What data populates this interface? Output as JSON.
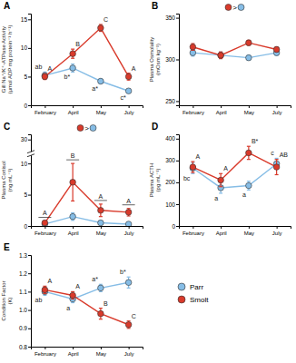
{
  "chart_data": [
    {
      "type": "line",
      "title": "A",
      "y_label": [
        "Gill Na⁺/K⁺-ATPase Activity",
        "(µmol ADP mg protein⁻¹ h⁻¹)"
      ],
      "categories": [
        "February",
        "April",
        "May",
        "July"
      ],
      "ylim": [
        0,
        16
      ],
      "yticks": [
        0,
        5,
        10,
        15
      ],
      "series": [
        {
          "name": "Parr",
          "color": "#86bde6",
          "values": [
            5.2,
            6.5,
            4.2,
            2.5
          ],
          "errors": [
            0.6,
            0.7,
            0.4,
            0.3
          ],
          "letters": [
            "ab",
            "b*",
            "a*",
            "c*"
          ]
        },
        {
          "name": "Smolt",
          "color": "#d93a2b",
          "values": [
            5.0,
            9.0,
            13.5,
            5.0
          ],
          "errors": [
            0.5,
            0.8,
            0.6,
            0.6
          ],
          "letters": [
            "A",
            "B",
            "C",
            "A"
          ]
        }
      ]
    },
    {
      "type": "line",
      "title": "B",
      "y_label": [
        "Plasma Osmolality",
        "(mOsm kg⁻¹)"
      ],
      "categories": [
        "February",
        "April",
        "May",
        "July"
      ],
      "ylim": [
        245,
        355
      ],
      "yticks": [
        250,
        300,
        350
      ],
      "comparison": {
        "text": ">",
        "colors": [
          "#d93a2b",
          "#86bde6"
        ]
      },
      "series": [
        {
          "name": "Parr",
          "color": "#86bde6",
          "values": [
            308,
            305,
            302,
            308
          ],
          "errors": [
            4,
            4,
            3,
            3
          ]
        },
        {
          "name": "Smolt",
          "color": "#d93a2b",
          "values": [
            315,
            305,
            320,
            312
          ],
          "errors": [
            4,
            4,
            3,
            3
          ]
        }
      ]
    },
    {
      "type": "line",
      "title": "C",
      "y_label": [
        "Plasma Cortisol",
        "(ng mL⁻¹)"
      ],
      "categories": [
        "February",
        "April",
        "May",
        "July"
      ],
      "ylim": [
        0,
        31
      ],
      "yticks": [
        0,
        5,
        10,
        30
      ],
      "y_break": [
        11,
        28
      ],
      "comparison": {
        "text": ">",
        "colors": [
          "#d93a2b",
          "#86bde6"
        ]
      },
      "pooled_letters": [
        "A",
        "B",
        "A",
        "A"
      ],
      "series": [
        {
          "name": "Parr",
          "color": "#86bde6",
          "values": [
            0.3,
            1.5,
            0.5,
            0.3
          ],
          "errors": [
            0.2,
            0.6,
            0.3,
            0.1
          ]
        },
        {
          "name": "Smolt",
          "color": "#d93a2b",
          "values": [
            0.5,
            7.0,
            2.5,
            2.2
          ],
          "errors": [
            0.3,
            3.0,
            1.0,
            0.6
          ]
        }
      ]
    },
    {
      "type": "line",
      "title": "D",
      "y_label": [
        "Plasma ACTH",
        "(pg mL⁻¹)"
      ],
      "categories": [
        "February",
        "April",
        "May",
        "July"
      ],
      "ylim": [
        0,
        420
      ],
      "yticks": [
        0,
        100,
        200,
        300,
        400
      ],
      "series": [
        {
          "name": "Parr",
          "color": "#86bde6",
          "values": [
            265,
            175,
            185,
            285
          ],
          "errors": [
            25,
            25,
            20,
            25
          ],
          "letters": [
            "bc",
            "a",
            "a",
            "c"
          ]
        },
        {
          "name": "Smolt",
          "color": "#d93a2b",
          "values": [
            270,
            210,
            335,
            270
          ],
          "errors": [
            25,
            30,
            30,
            35
          ],
          "letters": [
            "A",
            "A",
            "B*",
            "AB"
          ]
        }
      ]
    },
    {
      "type": "line",
      "title": "E",
      "y_label": [
        "Condition Factor",
        "(K)"
      ],
      "categories": [
        "February",
        "April",
        "May",
        "July"
      ],
      "ylim": [
        0.8,
        1.3
      ],
      "yticks": [
        0.8,
        0.9,
        {
          "value": 1.0,
          "label": "1.0"
        },
        1.1,
        1.2,
        1.3
      ],
      "legend": "right",
      "series": [
        {
          "name": "Parr",
          "color": "#86bde6",
          "values": [
            1.1,
            1.06,
            1.12,
            1.15
          ],
          "errors": [
            0.02,
            0.02,
            0.02,
            0.03
          ],
          "letters": [
            "ab",
            "a",
            "a*",
            "b*"
          ]
        },
        {
          "name": "Smolt",
          "color": "#d93a2b",
          "values": [
            1.11,
            1.08,
            0.98,
            0.92
          ],
          "errors": [
            0.02,
            0.02,
            0.03,
            0.02
          ],
          "letters": [
            "A",
            "A",
            "B",
            "C"
          ]
        }
      ]
    }
  ]
}
